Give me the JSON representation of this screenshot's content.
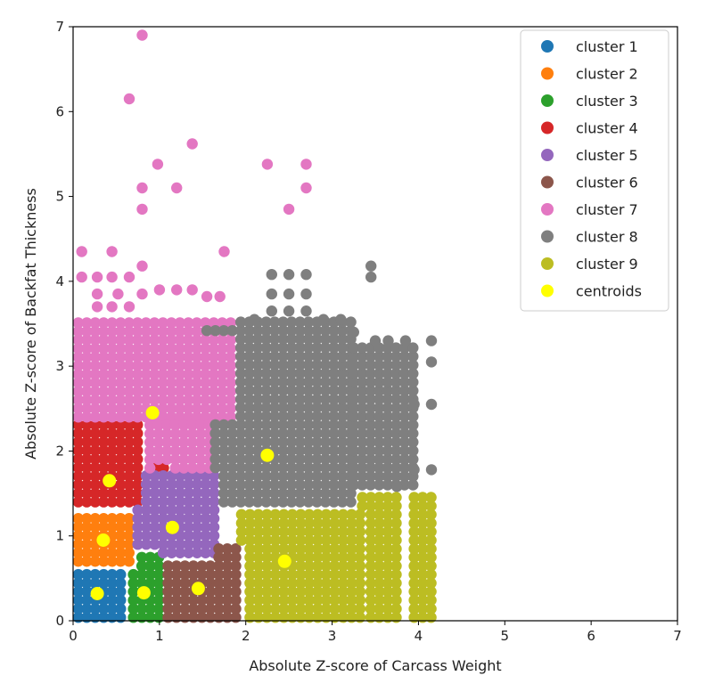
{
  "chart_data": {
    "type": "scatter",
    "title": "",
    "xlabel": "Absolute Z-score of Carcass Weight",
    "ylabel": "Absolute Z-score of Backfat Thickness",
    "xlim": [
      0,
      7
    ],
    "ylim": [
      0,
      7
    ],
    "xticks": [
      "0",
      "1",
      "2",
      "3",
      "4",
      "5",
      "6",
      "7"
    ],
    "yticks": [
      "0",
      "1",
      "2",
      "3",
      "4",
      "5",
      "6",
      "7"
    ],
    "legend_position": "top-right",
    "series": [
      {
        "name": "cluster 1",
        "color": "#1f77b4",
        "regions": [
          [
            0.06,
            0.6,
            0.04,
            0.6
          ]
        ],
        "points": []
      },
      {
        "name": "cluster 2",
        "color": "#ff7f0e",
        "regions": [
          [
            0.06,
            0.7,
            0.7,
            1.3
          ]
        ],
        "points": []
      },
      {
        "name": "cluster 3",
        "color": "#2ca02c",
        "regions": [
          [
            0.6,
            1.05,
            0.04,
            0.75
          ]
        ],
        "points": []
      },
      {
        "name": "cluster 4",
        "color": "#d62728",
        "regions": [
          [
            0.06,
            0.8,
            1.4,
            2.4
          ],
          [
            0.95,
            1.05,
            1.8,
            1.9
          ]
        ],
        "points": []
      },
      {
        "name": "cluster 5",
        "color": "#9467bd",
        "regions": [
          [
            0.75,
            1.65,
            0.8,
            1.8
          ]
        ],
        "points": []
      },
      {
        "name": "cluster 6",
        "color": "#8c564b",
        "regions": [
          [
            1.1,
            1.9,
            0.04,
            0.9
          ]
        ],
        "points": []
      },
      {
        "name": "cluster 7",
        "color": "#e377c2",
        "regions": [
          [
            0.06,
            1.9,
            2.4,
            3.6
          ],
          [
            0.4,
            1.65,
            1.8,
            2.4
          ]
        ],
        "points": [
          [
            0.8,
            6.9
          ],
          [
            0.65,
            6.15
          ],
          [
            1.38,
            5.62
          ],
          [
            0.98,
            5.38
          ],
          [
            2.25,
            5.38
          ],
          [
            2.7,
            5.38
          ],
          [
            0.8,
            5.1
          ],
          [
            1.2,
            5.1
          ],
          [
            2.7,
            5.1
          ],
          [
            0.8,
            4.85
          ],
          [
            2.5,
            4.85
          ],
          [
            0.1,
            4.35
          ],
          [
            0.45,
            4.35
          ],
          [
            1.75,
            4.35
          ],
          [
            0.8,
            4.18
          ],
          [
            0.1,
            4.05
          ],
          [
            0.28,
            4.05
          ],
          [
            0.45,
            4.05
          ],
          [
            0.65,
            4.05
          ],
          [
            0.28,
            3.85
          ],
          [
            0.52,
            3.85
          ],
          [
            0.8,
            3.85
          ],
          [
            1.0,
            3.9
          ],
          [
            1.2,
            3.9
          ],
          [
            1.38,
            3.9
          ],
          [
            1.55,
            3.82
          ],
          [
            1.7,
            3.82
          ],
          [
            0.28,
            3.7
          ],
          [
            0.45,
            3.7
          ],
          [
            0.65,
            3.7
          ]
        ]
      },
      {
        "name": "cluster 8",
        "color": "#7f7f7f",
        "regions": [
          [
            1.55,
            3.25,
            1.4,
            3.6
          ],
          [
            3.25,
            4.0,
            1.6,
            3.3
          ]
        ],
        "points": [
          [
            2.3,
            4.08
          ],
          [
            2.5,
            4.08
          ],
          [
            2.7,
            4.08
          ],
          [
            3.45,
            4.18
          ],
          [
            3.45,
            4.05
          ],
          [
            2.3,
            3.85
          ],
          [
            2.5,
            3.85
          ],
          [
            2.7,
            3.85
          ],
          [
            2.3,
            3.65
          ],
          [
            2.5,
            3.65
          ],
          [
            2.7,
            3.65
          ],
          [
            2.1,
            3.55
          ],
          [
            2.9,
            3.55
          ],
          [
            3.1,
            3.55
          ],
          [
            3.25,
            3.4
          ],
          [
            3.5,
            3.3
          ],
          [
            3.65,
            3.3
          ],
          [
            3.85,
            3.3
          ],
          [
            4.15,
            3.3
          ],
          [
            4.15,
            3.05
          ],
          [
            4.15,
            2.55
          ],
          [
            3.95,
            2.55
          ],
          [
            4.15,
            1.78
          ],
          [
            3.95,
            1.78
          ],
          [
            3.75,
            1.58
          ]
        ]
      },
      {
        "name": "cluster 9",
        "color": "#bcbd22",
        "regions": [
          [
            1.95,
            3.35,
            0.04,
            1.3
          ],
          [
            3.35,
            3.8,
            0.04,
            1.55
          ],
          [
            3.95,
            4.18,
            0.04,
            1.55
          ]
        ],
        "points": []
      }
    ],
    "centroids": {
      "name": "centroids",
      "color": "#ffff00",
      "points": [
        [
          0.28,
          0.32
        ],
        [
          0.35,
          0.95
        ],
        [
          0.82,
          0.33
        ],
        [
          0.42,
          1.65
        ],
        [
          0.92,
          2.45
        ],
        [
          1.15,
          1.1
        ],
        [
          1.45,
          0.38
        ],
        [
          2.25,
          1.95
        ],
        [
          2.45,
          0.7
        ]
      ]
    }
  }
}
